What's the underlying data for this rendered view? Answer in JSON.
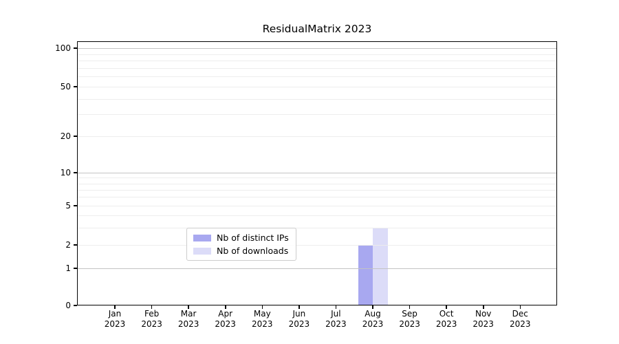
{
  "figure": {
    "title": "ResidualMatrix 2023"
  },
  "chart_data": {
    "type": "bar",
    "title": "ResidualMatrix 2023",
    "categories": [
      "Jan 2023",
      "Feb 2023",
      "Mar 2023",
      "Apr 2023",
      "May 2023",
      "Jun 2023",
      "Jul 2023",
      "Aug 2023",
      "Sep 2023",
      "Oct 2023",
      "Nov 2023",
      "Dec 2023"
    ],
    "series": [
      {
        "name": "Nb of distinct IPs",
        "color": "#a8a8f0",
        "values": [
          0,
          0,
          0,
          0,
          0,
          0,
          0,
          2,
          0,
          0,
          0,
          0
        ]
      },
      {
        "name": "Nb of downloads",
        "color": "#dcdcf8",
        "values": [
          0,
          0,
          0,
          0,
          0,
          0,
          0,
          3,
          0,
          0,
          0,
          0
        ]
      }
    ],
    "xlabel": "",
    "ylabel": "",
    "yscale": "symlog",
    "ylim": [
      0,
      114
    ],
    "yticks": [
      0,
      1,
      2,
      5,
      10,
      20,
      50,
      100
    ],
    "minor_gridlines": [
      2,
      3,
      4,
      5,
      6,
      7,
      8,
      9,
      20,
      30,
      40,
      50,
      60,
      70,
      80,
      90
    ],
    "major_gridlines": [
      1,
      10,
      100
    ],
    "grid": "on",
    "legend": {
      "entries": [
        "Nb of distinct IPs",
        "Nb of downloads"
      ],
      "position": "lower center inside"
    }
  }
}
